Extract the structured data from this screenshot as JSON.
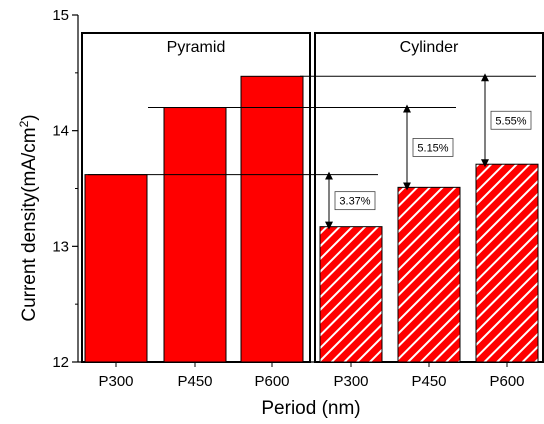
{
  "chart_data": {
    "type": "bar",
    "xlabel": "Period (nm)",
    "ylabel_main": "Current density(mA/cm",
    "ylabel_sup": "2",
    "ylabel_close": ")",
    "ylim": [
      12,
      15
    ],
    "yticks": [
      "12",
      "13",
      "14",
      "15"
    ],
    "groups": [
      {
        "name": "Pyramid",
        "fill": "solid",
        "categories": [
          "P300",
          "P450",
          "P600"
        ],
        "values": [
          13.62,
          14.2,
          14.47
        ]
      },
      {
        "name": "Cylinder",
        "fill": "hatched",
        "categories": [
          "P300",
          "P450",
          "P600"
        ],
        "values": [
          13.17,
          13.51,
          13.71
        ]
      }
    ],
    "annotations": [
      {
        "label": "3.37%",
        "from": 13.62,
        "to": 13.17
      },
      {
        "label": "5.15%",
        "from": 14.2,
        "to": 13.51
      },
      {
        "label": "5.55%",
        "from": 14.47,
        "to": 13.71
      }
    ],
    "colors": {
      "bar": "#ff0000",
      "hatch": "#ffffff"
    }
  }
}
